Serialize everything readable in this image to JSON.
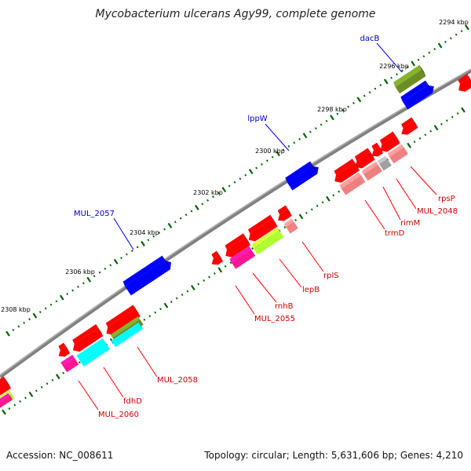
{
  "title": "Mycobacterium ulcerans Agy99, complete genome",
  "accession": "Accession: NC_008611",
  "summary": "Topology: circular; Length: 5,631,606 bp; Genes: 4,210",
  "scale_labels": [
    "2294 kbp",
    "2296 kbp",
    "2298 kbp",
    "2300 kbp",
    "2302 kbp",
    "2304 kbp",
    "2306 kbp",
    "2308 kbp"
  ],
  "labels_forward": [
    "dacB",
    "lppW",
    "MUL_2057"
  ],
  "labels_reverse": [
    "rpsP",
    "MUL_2048",
    "rimM",
    "trmD",
    "rplS",
    "lepB",
    "rnhB",
    "MUL_2055",
    "MUL_2058",
    "fdhD",
    "MUL_2060"
  ],
  "colors": {
    "backbone": "#808080",
    "forward": "#0000ff",
    "reverse": "#ff0000",
    "olive": "#6b8e23",
    "pink": "#f08080",
    "magenta": "#ff1493",
    "lime": "#adff2f",
    "cyan": "#00ffff",
    "grey": "#a0a0a0",
    "tick": "#006400"
  }
}
